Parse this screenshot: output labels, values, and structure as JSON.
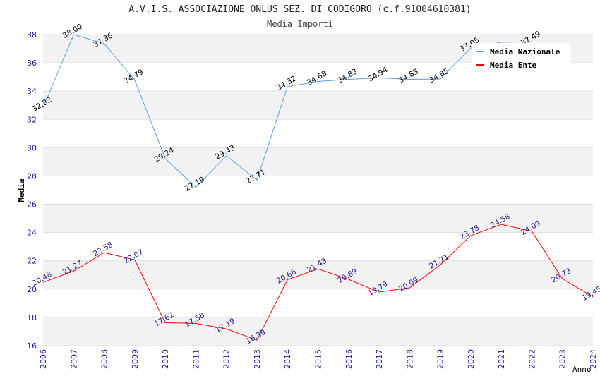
{
  "header": {
    "title": "A.V.I.S. ASSOCIAZIONE ONLUS SEZ. DI CODIGORO (c.f.91004610381)",
    "subtitle": "Media Importi"
  },
  "chart_data": {
    "type": "line",
    "title": "A.V.I.S. ASSOCIAZIONE ONLUS SEZ. DI CODIGORO (c.f.91004610381)",
    "subtitle": "Media Importi",
    "xlabel": "Anno",
    "ylabel": "Media",
    "x": [
      "2006",
      "2007",
      "2008",
      "2009",
      "2010",
      "2011",
      "2012",
      "2013",
      "2014",
      "2015",
      "2016",
      "2017",
      "2018",
      "2019",
      "2020",
      "2021",
      "2022",
      "2023",
      "2024"
    ],
    "ylim": [
      16,
      38
    ],
    "yticks": [
      16,
      18,
      20,
      22,
      24,
      26,
      28,
      30,
      32,
      34,
      36,
      38
    ],
    "grid": "alternating horizontal bands",
    "legend_position": "top-right",
    "series": [
      {
        "name": "Media Nazionale",
        "color": "#5aa0e0",
        "label_color": "#000000",
        "values": [
          32.82,
          38.0,
          37.36,
          34.79,
          29.24,
          27.19,
          29.43,
          27.71,
          34.32,
          34.68,
          34.83,
          34.94,
          34.83,
          34.85,
          37.05,
          37.46,
          37.49,
          null,
          null
        ],
        "labels": [
          "32.82",
          "38.00",
          "37.36",
          "34.79",
          "29.24",
          "27.19",
          "29.43",
          "27.71",
          "34.32",
          "34.68",
          "34.83",
          "34.94",
          "34.83",
          "34.85",
          "37.05",
          "",
          "37.49",
          "",
          ""
        ]
      },
      {
        "name": "Media Ente",
        "color": "#ff0000",
        "label_color": "#1a1a8c",
        "values": [
          20.48,
          21.27,
          22.58,
          22.07,
          17.62,
          17.58,
          17.19,
          16.39,
          20.66,
          21.43,
          20.69,
          19.79,
          20.09,
          21.71,
          23.78,
          24.58,
          24.09,
          20.73,
          19.45
        ],
        "labels": [
          "20.48",
          "21.27",
          "22.58",
          "22.07",
          "17.62",
          "17.58",
          "17.19",
          "16.39",
          "20.66",
          "21.43",
          "20.69",
          "19.79",
          "20.09",
          "21.71",
          "23.78",
          "24.58",
          "24.09",
          "20.73",
          "19.45"
        ]
      }
    ]
  }
}
